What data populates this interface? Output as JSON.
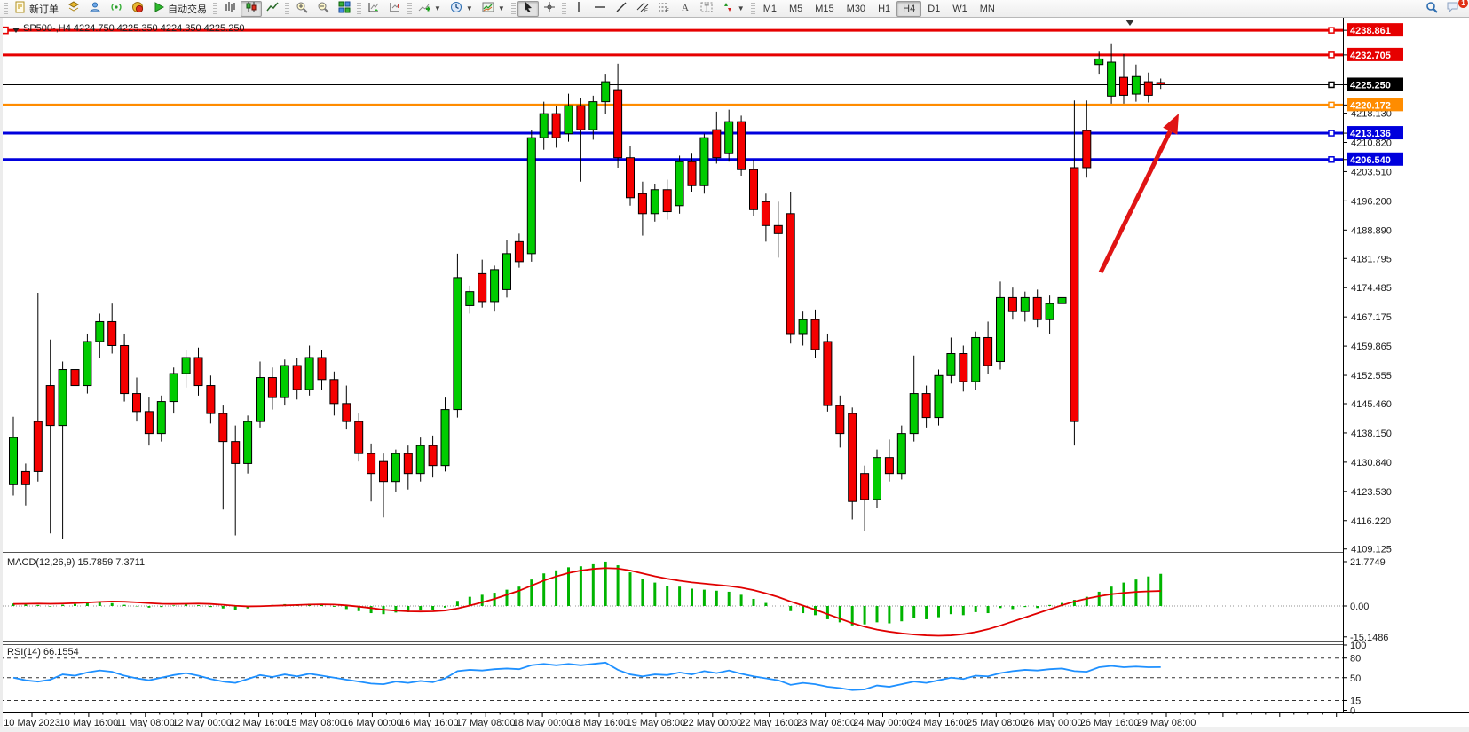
{
  "toolbar": {
    "new_order_label": "新订单",
    "autotrade_label": "自动交易",
    "groups": [
      {
        "items": [
          {
            "name": "new-order-button",
            "icon": "order",
            "label": "新订单"
          },
          {
            "name": "layers-icon-button",
            "icon": "layers"
          },
          {
            "name": "community-icon-button",
            "icon": "community"
          },
          {
            "name": "signals-icon-button",
            "icon": "signals"
          },
          {
            "name": "market-icon-button",
            "icon": "market"
          },
          {
            "name": "autotrade-button",
            "icon": "play",
            "label": "自动交易"
          }
        ]
      },
      {
        "items": [
          {
            "name": "bar-chart-button",
            "icon": "bars"
          },
          {
            "name": "candlestick-chart-button",
            "icon": "candles",
            "active": true
          },
          {
            "name": "line-chart-button",
            "icon": "linechart"
          }
        ]
      },
      {
        "items": [
          {
            "name": "zoom-in-button",
            "icon": "zoomin"
          },
          {
            "name": "zoom-out-button",
            "icon": "zoomout"
          },
          {
            "name": "tile-windows-button",
            "icon": "tile"
          }
        ]
      },
      {
        "items": [
          {
            "name": "auto-scroll-button",
            "icon": "autoscroll"
          },
          {
            "name": "chart-shift-button",
            "icon": "chartshift"
          }
        ]
      },
      {
        "items": [
          {
            "name": "add-indicator-button",
            "icon": "addindicator",
            "caret": true
          },
          {
            "name": "periods-button",
            "icon": "clock",
            "caret": true
          },
          {
            "name": "template-button",
            "icon": "template",
            "caret": true
          }
        ]
      },
      {
        "items": [
          {
            "name": "cursor-button",
            "icon": "cursor",
            "active": true
          },
          {
            "name": "crosshair-button",
            "icon": "crosshair"
          }
        ]
      },
      {
        "items": [
          {
            "name": "vertical-line-button",
            "icon": "vline"
          },
          {
            "name": "horizontal-line-button",
            "icon": "hline"
          },
          {
            "name": "trendline-button",
            "icon": "trendline"
          },
          {
            "name": "channel-button",
            "icon": "channel"
          },
          {
            "name": "fibonacci-button",
            "icon": "fibo"
          },
          {
            "name": "text-button",
            "icon": "textA"
          },
          {
            "name": "label-button",
            "icon": "labelT"
          },
          {
            "name": "arrows-button",
            "icon": "arrows",
            "caret": true
          }
        ]
      }
    ],
    "timeframes": {
      "items": [
        "M1",
        "M5",
        "M15",
        "M30",
        "H1",
        "H4",
        "D1",
        "W1",
        "MN"
      ],
      "active": "H4"
    },
    "right": [
      {
        "name": "search-button",
        "icon": "search"
      },
      {
        "name": "notifications-button",
        "icon": "chat",
        "badge": "1"
      }
    ]
  },
  "chart": {
    "title": "SP500-,H4  4224.750 4225.350 4224.350 4225.250",
    "symbol": "SP500-",
    "period": "H4",
    "ohlc": {
      "open": "4224.750",
      "high": "4225.350",
      "low": "4224.350",
      "close": "4225.250"
    },
    "price_axis_ticks": [
      "4218.130",
      "4210.820",
      "4203.510",
      "4196.200",
      "4188.890",
      "4181.795",
      "4174.485",
      "4167.175",
      "4159.865",
      "4152.555",
      "4145.460",
      "4138.150",
      "4130.840",
      "4123.530",
      "4116.220",
      "4109.125"
    ],
    "hlines": [
      {
        "value": 4238.861,
        "label": "4238.861",
        "color": "#e60000",
        "width": 3,
        "type": "resistance"
      },
      {
        "value": 4232.705,
        "label": "4232.705",
        "color": "#e60000",
        "width": 3,
        "type": "resistance"
      },
      {
        "value": 4225.25,
        "label": "4225.250",
        "color": "#000000",
        "width": 1,
        "type": "current-price"
      },
      {
        "value": 4220.172,
        "label": "4220.172",
        "color": "#ff8c00",
        "width": 3,
        "type": "level"
      },
      {
        "value": 4213.136,
        "label": "4213.136",
        "color": "#0000dd",
        "width": 3,
        "type": "support"
      },
      {
        "value": 4206.54,
        "label": "4206.540",
        "color": "#0000dd",
        "width": 3,
        "type": "support"
      }
    ],
    "time_axis_labels": [
      "10 May 2023",
      "10 May 16:00",
      "11 May 08:00",
      "12 May 00:00",
      "12 May 16:00",
      "15 May 08:00",
      "16 May 00:00",
      "16 May 16:00",
      "17 May 08:00",
      "18 May 00:00",
      "18 May 16:00",
      "19 May 08:00",
      "22 May 00:00",
      "22 May 16:00",
      "23 May 08:00",
      "24 May 00:00",
      "24 May 16:00",
      "25 May 08:00",
      "26 May 00:00",
      "26 May 16:00",
      "29 May 08:00"
    ]
  },
  "chart_data": {
    "type": "candlestick",
    "symbol": "SP500-",
    "timeframe": "H4",
    "price_range": [
      4108.4,
      4242.0
    ],
    "candles": [
      [
        4125.2,
        4142.2,
        4122.5,
        4137.0
      ],
      [
        4128.5,
        4130.5,
        4120.0,
        4125.2
      ],
      [
        4141.0,
        4173.2,
        4126.0,
        4128.5
      ],
      [
        4150.0,
        4161.5,
        4113.0,
        4140.0
      ],
      [
        4140.0,
        4156.0,
        4111.5,
        4154.0
      ],
      [
        4154.0,
        4158.0,
        4147.0,
        4150.0
      ],
      [
        4150.0,
        4163.0,
        4148.0,
        4161.0
      ],
      [
        4161.0,
        4168.0,
        4157.0,
        4166.0
      ],
      [
        4166.0,
        4170.5,
        4158.0,
        4160.0
      ],
      [
        4160.0,
        4163.0,
        4146.0,
        4148.0
      ],
      [
        4148.0,
        4152.0,
        4141.0,
        4143.5
      ],
      [
        4143.5,
        4147.0,
        4135.0,
        4138.0
      ],
      [
        4138.0,
        4147.5,
        4136.0,
        4146.0
      ],
      [
        4146.0,
        4154.5,
        4143.0,
        4153.0
      ],
      [
        4153.0,
        4159.0,
        4149.5,
        4157.0
      ],
      [
        4157.0,
        4159.5,
        4147.5,
        4150.0
      ],
      [
        4150.0,
        4152.5,
        4140.5,
        4143.0
      ],
      [
        4143.0,
        4145.0,
        4119.0,
        4136.0
      ],
      [
        4136.0,
        4140.0,
        4112.5,
        4130.5
      ],
      [
        4130.5,
        4142.5,
        4128.0,
        4141.0
      ],
      [
        4141.0,
        4156.0,
        4139.5,
        4152.0
      ],
      [
        4152.0,
        4154.5,
        4144.0,
        4147.0
      ],
      [
        4147.0,
        4156.5,
        4145.0,
        4155.0
      ],
      [
        4155.0,
        4157.0,
        4146.5,
        4149.0
      ],
      [
        4149.0,
        4160.0,
        4147.5,
        4157.0
      ],
      [
        4157.0,
        4159.0,
        4149.0,
        4151.5
      ],
      [
        4151.5,
        4153.5,
        4142.5,
        4145.5
      ],
      [
        4145.5,
        4150.0,
        4139.0,
        4141.0
      ],
      [
        4141.0,
        4143.0,
        4131.0,
        4133.0
      ],
      [
        4133.0,
        4135.5,
        4121.0,
        4128.0
      ],
      [
        4131.0,
        4133.0,
        4117.0,
        4126.0
      ],
      [
        4126.0,
        4134.0,
        4123.5,
        4133.0
      ],
      [
        4133.0,
        4135.0,
        4124.0,
        4128.0
      ],
      [
        4128.0,
        4137.0,
        4126.0,
        4135.0
      ],
      [
        4135.0,
        4137.5,
        4127.0,
        4130.0
      ],
      [
        4130.0,
        4147.0,
        4128.5,
        4144.0
      ],
      [
        4144.0,
        4183.0,
        4142.0,
        4177.0
      ],
      [
        4170.0,
        4175.0,
        4168.0,
        4173.5
      ],
      [
        4178.0,
        4181.5,
        4169.5,
        4171.0
      ],
      [
        4171.0,
        4180.0,
        4168.5,
        4179.0
      ],
      [
        4174.0,
        4186.5,
        4172.0,
        4183.0
      ],
      [
        4186.0,
        4188.0,
        4179.5,
        4181.0
      ],
      [
        4183.0,
        4214.0,
        4181.0,
        4212.0
      ],
      [
        4212.0,
        4221.0,
        4209.0,
        4218.0
      ],
      [
        4218.0,
        4220.0,
        4209.5,
        4212.0
      ],
      [
        4213.0,
        4223.0,
        4211.0,
        4220.0
      ],
      [
        4220.0,
        4222.0,
        4201.0,
        4214.0
      ],
      [
        4214.0,
        4222.5,
        4211.5,
        4221.0
      ],
      [
        4221.0,
        4228.0,
        4218.0,
        4226.0
      ],
      [
        4224.0,
        4230.5,
        4204.5,
        4207.0
      ],
      [
        4207.0,
        4210.0,
        4195.0,
        4197.0
      ],
      [
        4198.0,
        4201.0,
        4187.5,
        4193.0
      ],
      [
        4193.0,
        4200.5,
        4191.0,
        4199.0
      ],
      [
        4199.0,
        4201.5,
        4191.5,
        4193.5
      ],
      [
        4195.0,
        4207.5,
        4193.0,
        4206.0
      ],
      [
        4206.0,
        4208.0,
        4198.5,
        4200.0
      ],
      [
        4200.0,
        4213.0,
        4198.0,
        4212.0
      ],
      [
        4214.0,
        4218.5,
        4205.5,
        4207.0
      ],
      [
        4208.0,
        4219.0,
        4206.0,
        4216.0
      ],
      [
        4216.0,
        4217.5,
        4202.5,
        4204.0
      ],
      [
        4204.0,
        4206.5,
        4192.5,
        4194.0
      ],
      [
        4196.0,
        4198.0,
        4186.0,
        4190.0
      ],
      [
        4190.0,
        4196.0,
        4182.0,
        4188.0
      ],
      [
        4193.0,
        4198.5,
        4160.5,
        4163.0
      ],
      [
        4163.0,
        4168.5,
        4160.0,
        4166.5
      ],
      [
        4166.5,
        4169.0,
        4157.0,
        4159.0
      ],
      [
        4161.0,
        4163.0,
        4143.5,
        4145.0
      ],
      [
        4145.0,
        4147.5,
        4134.5,
        4138.0
      ],
      [
        4143.0,
        4144.5,
        4116.5,
        4121.0
      ],
      [
        4128.0,
        4130.0,
        4113.5,
        4121.5
      ],
      [
        4121.5,
        4134.0,
        4119.5,
        4132.0
      ],
      [
        4132.0,
        4136.5,
        4126.0,
        4128.0
      ],
      [
        4128.0,
        4140.0,
        4126.5,
        4138.0
      ],
      [
        4138.0,
        4157.5,
        4136.0,
        4148.0
      ],
      [
        4148.0,
        4150.0,
        4139.5,
        4142.0
      ],
      [
        4142.0,
        4154.0,
        4140.0,
        4152.5
      ],
      [
        4152.5,
        4162.0,
        4150.5,
        4158.0
      ],
      [
        4158.0,
        4160.0,
        4148.5,
        4151.0
      ],
      [
        4151.0,
        4163.5,
        4149.0,
        4162.0
      ],
      [
        4162.0,
        4166.0,
        4153.0,
        4155.0
      ],
      [
        4156.0,
        4176.0,
        4154.0,
        4172.0
      ],
      [
        4172.0,
        4174.5,
        4166.5,
        4168.5
      ],
      [
        4168.5,
        4173.5,
        4166.0,
        4172.0
      ],
      [
        4172.0,
        4174.0,
        4164.5,
        4166.5
      ],
      [
        4166.5,
        4172.5,
        4163.0,
        4170.5
      ],
      [
        4170.5,
        4175.5,
        4164.0,
        4172.0
      ],
      [
        4204.5,
        4221.3,
        4135.0,
        4141.0
      ],
      [
        4213.8,
        4221.3,
        4202.0,
        4204.5
      ],
      [
        4230.3,
        4233.5,
        4228.0,
        4231.7
      ],
      [
        4222.4,
        4235.4,
        4220.5,
        4230.9
      ],
      [
        4227.1,
        4232.9,
        4220.5,
        4222.6
      ],
      [
        4222.9,
        4230.3,
        4221.0,
        4227.3
      ],
      [
        4226.0,
        4228.3,
        4220.8,
        4222.6
      ],
      [
        4225.8,
        4226.8,
        4224.2,
        4225.25
      ]
    ],
    "indicators": {
      "macd": {
        "label": "MACD(12,26,9) 15.7859 7.3711",
        "name": "MACD(12,26,9)",
        "main_value": "15.7859",
        "signal_value": "7.3711",
        "axis_labels": [
          "21.7749",
          "0.00",
          "-15.1486"
        ],
        "range": [
          -15.1486,
          21.7749
        ],
        "histogram": [
          1.2,
          0.8,
          0.5,
          -0.3,
          0.6,
          1.0,
          1.5,
          1.8,
          1.4,
          0.6,
          -0.2,
          -0.8,
          -0.5,
          0.3,
          0.8,
          0.4,
          -0.5,
          -1.2,
          -1.8,
          -1.2,
          0.2,
          0.5,
          0.9,
          0.7,
          1.1,
          0.6,
          -0.4,
          -1.5,
          -2.5,
          -3.5,
          -4.0,
          -3.2,
          -3.0,
          -2.2,
          -2.0,
          -0.8,
          2.5,
          4.5,
          5.5,
          6.5,
          8.0,
          9.5,
          13.0,
          16.0,
          17.5,
          19.0,
          19.5,
          20.5,
          21.8,
          20.0,
          16.5,
          13.5,
          11.5,
          10.0,
          9.5,
          8.5,
          8.0,
          7.5,
          7.0,
          5.5,
          3.5,
          1.5,
          0.0,
          -2.5,
          -3.5,
          -4.5,
          -6.5,
          -8.0,
          -9.5,
          -9.0,
          -8.0,
          -8.5,
          -7.5,
          -6.0,
          -6.5,
          -5.5,
          -4.0,
          -4.5,
          -3.0,
          -3.5,
          -1.0,
          -1.5,
          -0.5,
          -1.0,
          0.5,
          1.5,
          3.0,
          4.5,
          7.0,
          9.5,
          11.5,
          13.0,
          14.5,
          15.79
        ],
        "signal": [
          1.0,
          1.1,
          1.2,
          1.1,
          1.2,
          1.4,
          1.7,
          2.0,
          2.2,
          2.1,
          1.8,
          1.4,
          1.1,
          1.0,
          1.1,
          1.2,
          1.0,
          0.6,
          0.1,
          -0.2,
          -0.1,
          0.1,
          0.3,
          0.5,
          0.7,
          0.8,
          0.7,
          0.3,
          -0.3,
          -1.0,
          -1.8,
          -2.3,
          -2.6,
          -2.7,
          -2.6,
          -2.2,
          -1.2,
          0.2,
          1.8,
          3.5,
          5.5,
          7.5,
          10.0,
          12.5,
          14.5,
          16.2,
          17.4,
          18.2,
          18.6,
          18.4,
          17.4,
          16.0,
          14.6,
          13.4,
          12.4,
          11.6,
          11.0,
          10.4,
          9.8,
          9.0,
          7.8,
          6.2,
          4.4,
          2.2,
          0.2,
          -1.8,
          -4.0,
          -6.2,
          -8.4,
          -10.2,
          -11.6,
          -12.6,
          -13.4,
          -14.0,
          -14.4,
          -14.6,
          -14.4,
          -13.8,
          -12.8,
          -11.4,
          -9.6,
          -7.6,
          -5.6,
          -3.6,
          -1.6,
          0.4,
          2.2,
          3.6,
          4.8,
          5.8,
          6.4,
          6.9,
          7.2,
          7.37
        ]
      },
      "rsi": {
        "label": "RSI(14) 66.1554",
        "name": "RSI(14)",
        "value": "66.1554",
        "axis_labels": [
          "100",
          "80",
          "50",
          "15",
          "0"
        ],
        "levels": [
          80,
          50,
          15
        ],
        "range": [
          0,
          100
        ],
        "values": [
          50,
          46,
          44,
          47,
          55,
          53,
          58,
          61,
          59,
          53,
          49,
          46,
          50,
          54,
          57,
          53,
          48,
          44,
          42,
          48,
          54,
          51,
          55,
          52,
          56,
          53,
          50,
          47,
          44,
          41,
          40,
          44,
          42,
          45,
          43,
          49,
          60,
          62,
          61,
          63,
          64,
          63,
          69,
          71,
          69,
          71,
          69,
          71,
          73,
          62,
          55,
          52,
          55,
          54,
          58,
          55,
          60,
          57,
          61,
          56,
          52,
          49,
          46,
          39,
          42,
          40,
          36,
          34,
          31,
          32,
          38,
          36,
          40,
          44,
          42,
          46,
          50,
          48,
          53,
          52,
          57,
          60,
          62,
          61,
          63,
          64,
          60,
          59,
          66,
          68,
          66,
          67,
          66,
          66.15
        ]
      }
    },
    "annotations": {
      "arrow": {
        "from": [
          1240,
          307
        ],
        "to": [
          1328,
          128
        ],
        "color": "#e01414"
      }
    }
  },
  "colors": {
    "bull": "#00cc00",
    "bear": "#f50000",
    "candle_border": "#000000",
    "macd_histogram": "#00b400",
    "macd_signal": "#e00000",
    "rsi_line": "#1e90ff",
    "resistance": "#e60000",
    "level_orange": "#ff8c00",
    "support_blue": "#0000dd",
    "axis_text": "#1a1a1a"
  }
}
